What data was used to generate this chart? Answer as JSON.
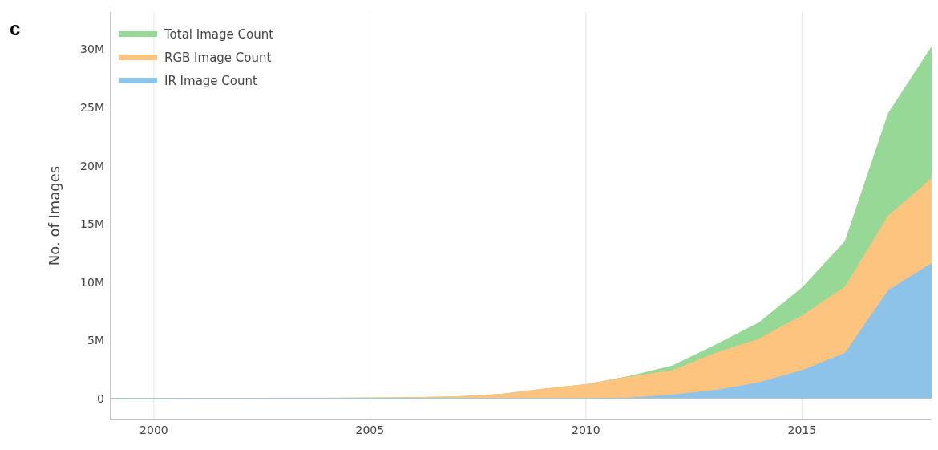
{
  "chart_data": {
    "type": "area",
    "annotations": [
      "c"
    ],
    "ylabel": "No. of Images",
    "x": [
      1999,
      2000,
      2001,
      2002,
      2003,
      2004,
      2005,
      2006,
      2007,
      2008,
      2009,
      2010,
      2011,
      2012,
      2013,
      2014,
      2015,
      2016,
      2017,
      2018
    ],
    "series": [
      {
        "name": "Total Image Count",
        "color": "#96d896",
        "values": [
          0,
          10000,
          20000,
          20000,
          30000,
          30000,
          50000,
          80000,
          150000,
          350000,
          800000,
          1200000,
          1900000,
          2800000,
          4600000,
          6500000,
          9500000,
          13500000,
          24500000,
          30200000
        ]
      },
      {
        "name": "RGB Image Count",
        "color": "#fdc47f",
        "values": [
          0,
          10000,
          20000,
          20000,
          30000,
          30000,
          50000,
          80000,
          150000,
          350000,
          800000,
          1200000,
          1850000,
          2400000,
          3900000,
          5100000,
          7100000,
          9600000,
          15700000,
          18900000
        ]
      },
      {
        "name": "IR Image Count",
        "color": "#8dc3e8",
        "values": [
          0,
          0,
          0,
          0,
          0,
          0,
          0,
          0,
          0,
          0,
          0,
          0,
          50000,
          300000,
          700000,
          1350000,
          2400000,
          3900000,
          9300000,
          11600000
        ]
      }
    ],
    "xlim": [
      1999,
      2018
    ],
    "xticks": [
      2000,
      2005,
      2010,
      2015
    ],
    "ylim": [
      -1800000,
      33200000
    ],
    "yticks": [
      {
        "value": 0,
        "label": "0"
      },
      {
        "value": 5000000,
        "label": "5M"
      },
      {
        "value": 10000000,
        "label": "10M"
      },
      {
        "value": 15000000,
        "label": "15M"
      },
      {
        "value": 20000000,
        "label": "20M"
      },
      {
        "value": 25000000,
        "label": "25M"
      },
      {
        "value": 30000000,
        "label": "30M"
      }
    ],
    "grid": "x",
    "legend": "top left"
  }
}
